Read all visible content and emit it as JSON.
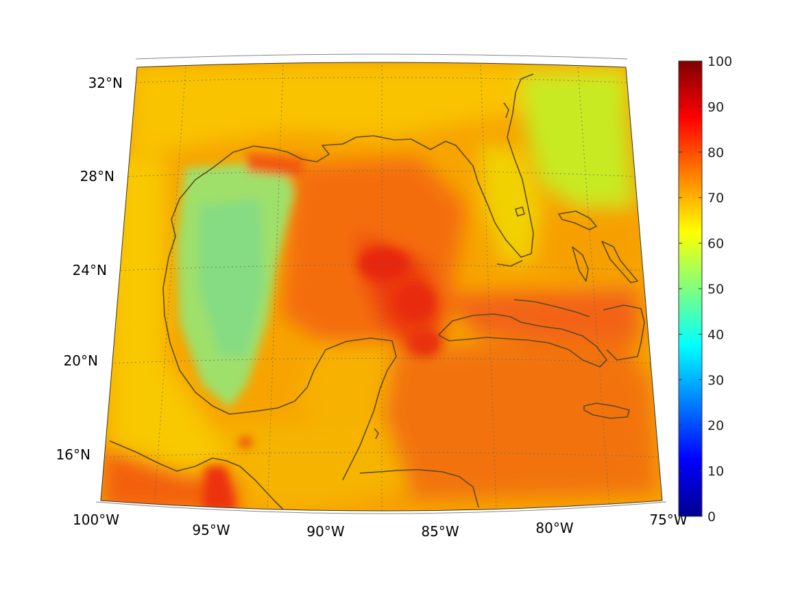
{
  "map": {
    "region": "Gulf of Mexico and Caribbean",
    "projection": "conic",
    "longitude_range": [
      -100,
      -75
    ],
    "latitude_range": [
      14,
      33
    ],
    "longitude_tick_labels": [
      "100°W",
      "95°W",
      "90°W",
      "85°W",
      "80°W",
      "75°W"
    ],
    "latitude_tick_labels": [
      "16°N",
      "20°N",
      "24°N",
      "28°N",
      "32°N"
    ],
    "gridlines": "dotted",
    "coastline_color": "#5b4a1e",
    "colormap": "jet"
  },
  "colorbar": {
    "range": [
      0,
      100
    ],
    "tick_labels": [
      "100",
      "90",
      "80",
      "70",
      "60",
      "50",
      "40",
      "30",
      "20",
      "10",
      "0"
    ]
  }
}
